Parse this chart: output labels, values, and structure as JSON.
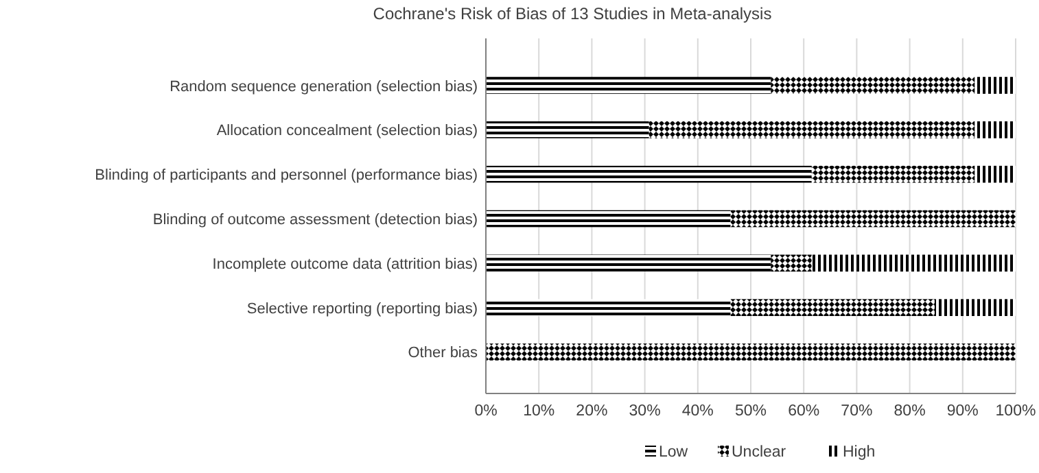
{
  "chart_data": {
    "type": "bar",
    "orientation": "horizontal",
    "stacked": true,
    "title": "Cochrane's Risk of Bias of 13 Studies in Meta-analysis",
    "categories": [
      "Random sequence generation (selection bias)",
      "Allocation concealment (selection bias)",
      "Blinding of participants and personnel (performance bias)",
      "Blinding of outcome assessment (detection bias)",
      "Incomplete outcome data (attrition bias)",
      "Selective reporting (reporting bias)",
      "Other bias"
    ],
    "series": [
      {
        "name": "Low",
        "color": "#000000",
        "values": [
          53.8,
          30.8,
          61.5,
          46.2,
          53.8,
          46.2,
          0
        ]
      },
      {
        "name": "Unclear",
        "color": "#000000",
        "values": [
          38.5,
          61.5,
          30.8,
          53.8,
          7.7,
          38.5,
          100
        ]
      },
      {
        "name": "High",
        "color": "#000000",
        "values": [
          7.7,
          7.7,
          7.7,
          0,
          38.5,
          15.3,
          0
        ]
      }
    ],
    "xlim": [
      0,
      100
    ],
    "xticks": [
      {
        "value": 0,
        "label": "0%"
      },
      {
        "value": 10,
        "label": "10%"
      },
      {
        "value": 20,
        "label": "20%"
      },
      {
        "value": 30,
        "label": "30%"
      },
      {
        "value": 40,
        "label": "40%"
      },
      {
        "value": 50,
        "label": "50%"
      },
      {
        "value": 60,
        "label": "60%"
      },
      {
        "value": 70,
        "label": "70%"
      },
      {
        "value": 80,
        "label": "80%"
      },
      {
        "value": 90,
        "label": "90%"
      },
      {
        "value": 100,
        "label": "100%"
      }
    ],
    "grid": "x",
    "legend": "bottom"
  }
}
